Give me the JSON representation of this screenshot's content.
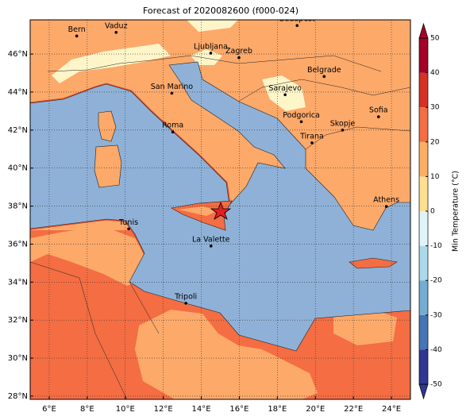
{
  "title": "Forecast of 2020082600 (f000-024)",
  "map": {
    "xlim": [
      5,
      25
    ],
    "ylim": [
      27.83,
      47.8
    ],
    "xticks": [
      {
        "value": 6,
        "label": "6°E"
      },
      {
        "value": 8,
        "label": "8°E"
      },
      {
        "value": 10,
        "label": "10°E"
      },
      {
        "value": 12,
        "label": "12°E"
      },
      {
        "value": 14,
        "label": "14°E"
      },
      {
        "value": 16,
        "label": "16°E"
      },
      {
        "value": 18,
        "label": "18°E"
      },
      {
        "value": 20,
        "label": "20°E"
      },
      {
        "value": 22,
        "label": "22°E"
      },
      {
        "value": 24,
        "label": "24°E"
      }
    ],
    "yticks": [
      {
        "value": 28,
        "label": "28°N"
      },
      {
        "value": 30,
        "label": "30°N"
      },
      {
        "value": 32,
        "label": "32°N"
      },
      {
        "value": 34,
        "label": "34°N"
      },
      {
        "value": 36,
        "label": "36°N"
      },
      {
        "value": 38,
        "label": "38°N"
      },
      {
        "value": 40,
        "label": "40°N"
      },
      {
        "value": 42,
        "label": "42°N"
      },
      {
        "value": 44,
        "label": "44°N"
      },
      {
        "value": 46,
        "label": "46°N"
      }
    ],
    "grid": true,
    "cities": [
      "Bern",
      "Vaduz",
      "Budapest",
      "Ljubljana",
      "Zagreb",
      "Belgrade",
      "Sarajevo",
      "San Marino",
      "Sofia",
      "Podgorica",
      "Skopje",
      "Roma",
      "Tirana",
      "Athens",
      "Tunis",
      "La Valette",
      "Tripoli"
    ]
  },
  "colorbar": {
    "label": "Min Temperature (°C)",
    "lim": [
      -50,
      50
    ],
    "ticks": [
      -50,
      -40,
      -30,
      -20,
      -10,
      0,
      10,
      20,
      30,
      40,
      50
    ],
    "colors": [
      "#313695",
      "#4575b4",
      "#74add1",
      "#abd9e9",
      "#e0f3f8",
      "#fee090",
      "#fdae61",
      "#f46d43",
      "#d73027",
      "#a50026"
    ]
  }
}
